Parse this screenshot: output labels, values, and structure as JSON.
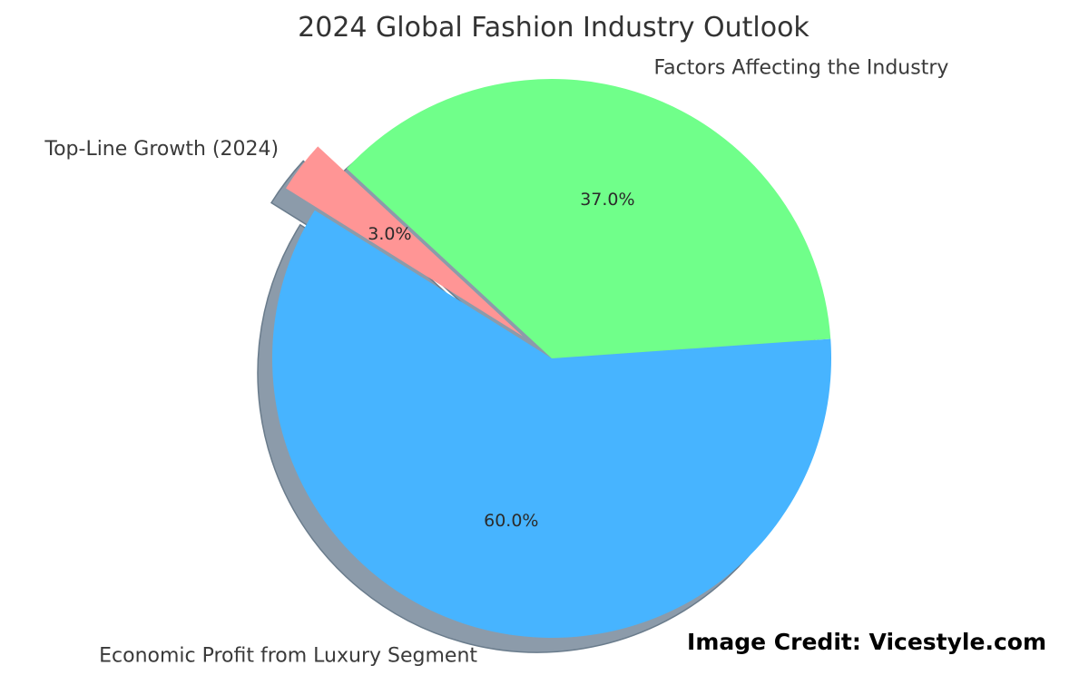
{
  "chart_data": {
    "type": "pie",
    "title": "2024 Global Fashion Industry Outlook",
    "slices": [
      {
        "label": "Economic Profit from Luxury Segment",
        "value": 60.0,
        "pct_label": "60.0%",
        "color": "#47b4ff",
        "explode": false
      },
      {
        "label": "Factors Affecting the Industry",
        "value": 37.0,
        "pct_label": "37.0%",
        "color": "#70ff8a",
        "explode": false
      },
      {
        "label": "Top-Line Growth (2024)",
        "value": 3.0,
        "pct_label": "3.0%",
        "color": "#ff9595",
        "explode": true
      }
    ],
    "shadow": true,
    "legend": "none"
  },
  "credit": "Image Credit: Vicestyle.com"
}
